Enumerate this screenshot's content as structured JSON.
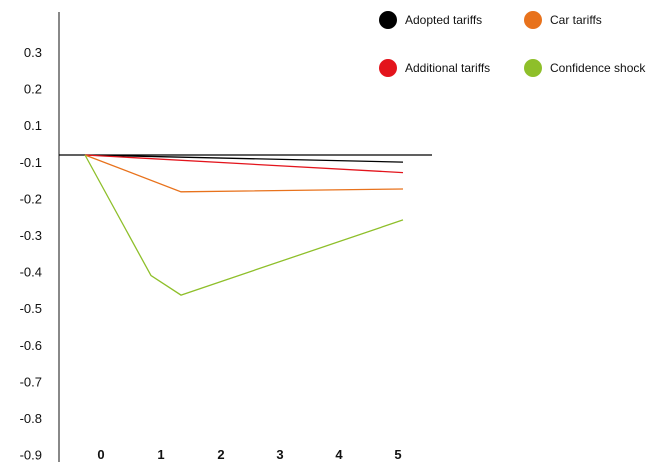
{
  "chart_data": {
    "type": "line",
    "x_categories": [
      "0",
      "1",
      "2",
      "3",
      "4",
      "5"
    ],
    "y_ticks": [
      "0.3",
      "0.2",
      "0.1",
      "-0.1",
      "-0.2",
      "-0.3",
      "-0.4",
      "-0.5",
      "-0.6",
      "-0.7",
      "-0.8",
      "-0.9"
    ],
    "series": [
      {
        "name": "Adopted tariffs",
        "color": "#000000",
        "x": [
          0,
          5.3
        ],
        "y": [
          -0.1,
          -0.123
        ]
      },
      {
        "name": "Additional tariffs",
        "color": "#e3141c",
        "x": [
          0,
          5.3
        ],
        "y": [
          -0.1,
          -0.157
        ]
      },
      {
        "name": "Car tariffs",
        "color": "#e8721c",
        "x": [
          0,
          1.6,
          5.3
        ],
        "y": [
          -0.1,
          -0.219,
          -0.21
        ]
      },
      {
        "name": "Confidence shock",
        "color": "#8ebf2a",
        "x": [
          0,
          1.1,
          1.6,
          5.3
        ],
        "y": [
          -0.1,
          -0.49,
          -0.553,
          -0.31
        ]
      }
    ],
    "reference_line": {
      "y": -0.1,
      "color": "#000000"
    },
    "grid": false,
    "legend": "top-right"
  }
}
